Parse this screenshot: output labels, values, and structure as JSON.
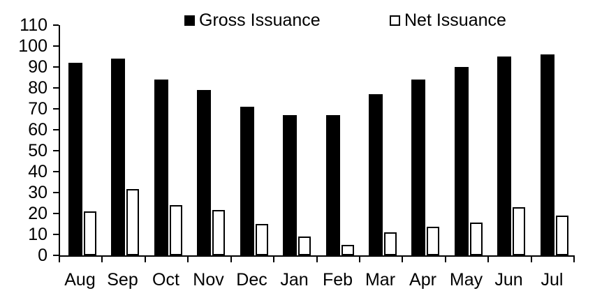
{
  "chart_data": {
    "type": "bar",
    "categories": [
      "Aug",
      "Sep",
      "Oct",
      "Nov",
      "Dec",
      "Jan",
      "Feb",
      "Mar",
      "Apr",
      "May",
      "Jun",
      "Jul"
    ],
    "series": [
      {
        "name": "Gross Issuance",
        "fill": "#000000",
        "values": [
          92,
          94,
          84,
          79,
          71,
          67,
          67,
          77,
          84,
          90,
          95,
          96
        ]
      },
      {
        "name": "Net Issuance",
        "fill": "#ffffff",
        "stroke": "#000000",
        "values": [
          21,
          31.5,
          24,
          21.5,
          15,
          9,
          5,
          11,
          13.5,
          15.5,
          23,
          19
        ]
      }
    ],
    "title": "",
    "xlabel": "",
    "ylabel": "",
    "ylim": [
      0,
      110
    ],
    "yticks": [
      0,
      10,
      20,
      30,
      40,
      50,
      60,
      70,
      80,
      90,
      100,
      110
    ],
    "grid": false,
    "legend_position": "top",
    "axis_color": "#000000",
    "background_color": "#ffffff"
  }
}
